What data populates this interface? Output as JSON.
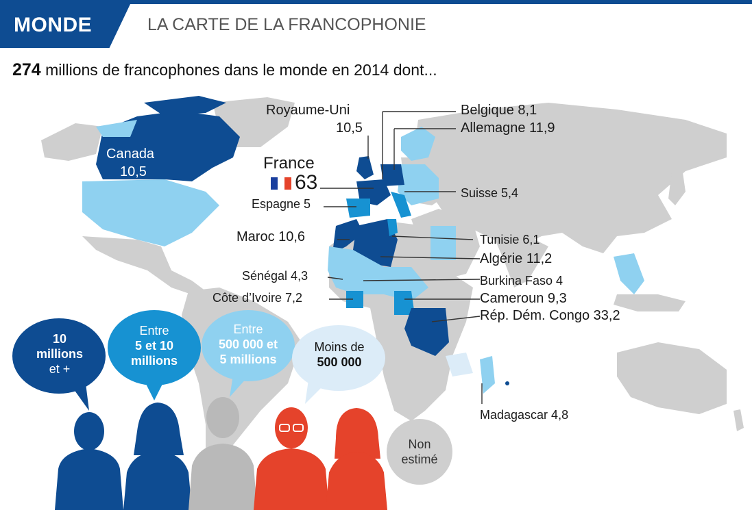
{
  "header": {
    "section": "MONDE",
    "title": "LA CARTE DE LA FRANCOPHONIE"
  },
  "subtitle": {
    "total": "274",
    "text": " millions de francophones dans le monde en 2014 dont..."
  },
  "colors": {
    "level1": "#0e4c92",
    "level2": "#1792d2",
    "level3": "#8fd1f0",
    "level4": "#dcecf8",
    "none": "#cfcfcf",
    "accent_red": "#e5432b"
  },
  "countries": {
    "royaume_uni": {
      "name": "Royaume-Uni",
      "value": "10,5"
    },
    "canada": {
      "name": "Canada",
      "value": "10,5"
    },
    "france": {
      "name": "France",
      "value": "63"
    },
    "belgique": "Belgique 8,1",
    "allemagne": "Allemagne 11,9",
    "suisse": "Suisse 5,4",
    "espagne": "Espagne 5",
    "maroc": "Maroc 10,6",
    "tunisie": "Tunisie 6,1",
    "algerie": "Algérie 11,2",
    "senegal": "Sénégal 4,3",
    "burkina": "Burkina Faso 4",
    "cote_ivoire": "Côte d’Ivoire 7,2",
    "cameroun": "Cameroun 9,3",
    "congo": "Rép. Dém. Congo 33,2",
    "madagascar": "Madagascar 4,8"
  },
  "legend": {
    "l1": {
      "a": "10",
      "b": "millions",
      "c": "et +"
    },
    "l2": {
      "a": "Entre",
      "b": "5 et 10",
      "c": "millions"
    },
    "l3": {
      "a": "Entre",
      "b": "500 000 et",
      "c": "5 millions"
    },
    "l4": {
      "a": "Moins de",
      "b": "500 000"
    },
    "none": {
      "a": "Non",
      "b": "estimé"
    }
  }
}
